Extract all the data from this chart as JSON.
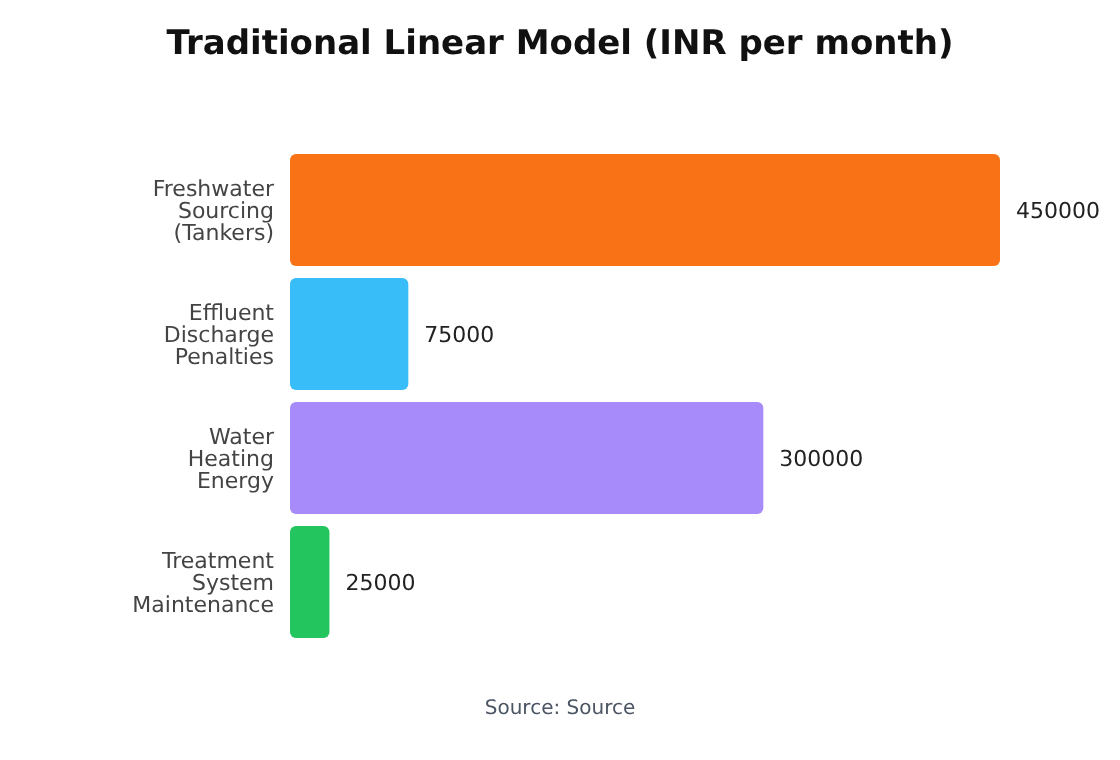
{
  "chart_data": {
    "type": "bar",
    "orientation": "horizontal",
    "title": "Traditional Linear Model (INR per month)",
    "categories": [
      "Freshwater Sourcing (Tankers)",
      "Effluent Discharge Penalties",
      "Water Heating Energy",
      "Treatment System Maintenance"
    ],
    "values": [
      450000,
      75000,
      300000,
      25000
    ],
    "colors": [
      "#f97316",
      "#38bdf8",
      "#a78bfa",
      "#22c55e"
    ],
    "data_labels": true,
    "annotations": [
      "Source: Source"
    ]
  }
}
